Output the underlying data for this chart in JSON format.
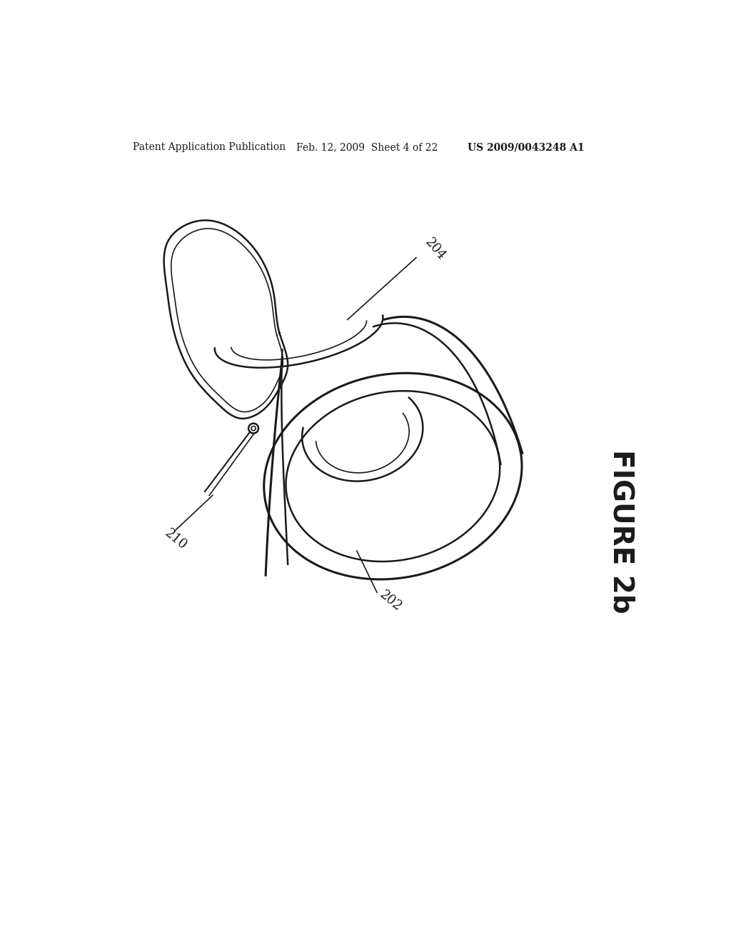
{
  "bg_color": "#ffffff",
  "header_left": "Patent Application Publication",
  "header_mid": "Feb. 12, 2009  Sheet 4 of 22",
  "header_right": "US 2009/0043248 A1",
  "figure_label": "FIGURE 2b",
  "label_204": "204",
  "label_210": "210",
  "label_202": "202",
  "line_color": "#1a1a1a",
  "line_width": 1.8,
  "lw_thick": 2.2,
  "lw_thin": 1.2
}
